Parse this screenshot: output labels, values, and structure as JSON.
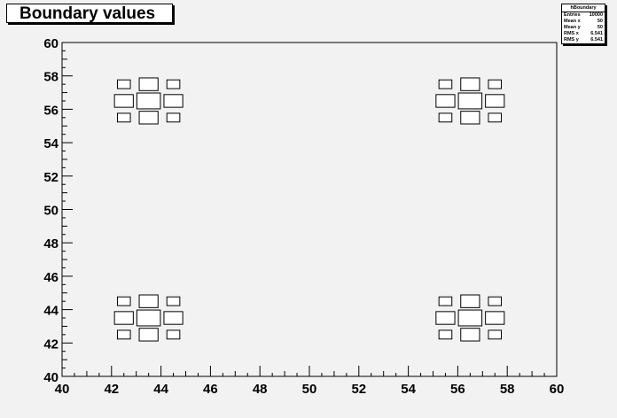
{
  "title": "Boundary values",
  "stats": {
    "name": "hBoundary",
    "rows": [
      {
        "label": "Entries",
        "value": "10000"
      },
      {
        "label": "Mean x",
        "value": "50"
      },
      {
        "label": "Mean y",
        "value": "50"
      },
      {
        "label": "RMS x",
        "value": "6.541"
      },
      {
        "label": "RMS y",
        "value": "6.541"
      }
    ]
  },
  "chart_data": {
    "type": "heatmap",
    "title": "Boundary values",
    "draw_option": "box",
    "xlim": [
      40,
      60
    ],
    "ylim": [
      40,
      60
    ],
    "x_ticks": [
      "40",
      "42",
      "44",
      "46",
      "48",
      "50",
      "52",
      "54",
      "56",
      "58",
      "60"
    ],
    "y_ticks": [
      "40",
      "42",
      "44",
      "46",
      "48",
      "50",
      "52",
      "54",
      "56",
      "58",
      "60"
    ],
    "bin_width": 1,
    "clusters": [
      {
        "center": [
          43.5,
          43.5
        ]
      },
      {
        "center": [
          56.5,
          43.5
        ]
      },
      {
        "center": [
          43.5,
          56.5
        ]
      },
      {
        "center": [
          56.5,
          56.5
        ]
      }
    ],
    "cluster_pattern": [
      {
        "dx": -1,
        "dy": 1,
        "rel": 0.55
      },
      {
        "dx": 0,
        "dy": 1,
        "rel": 0.8
      },
      {
        "dx": 1,
        "dy": 1,
        "rel": 0.55
      },
      {
        "dx": -1,
        "dy": 0,
        "rel": 0.8
      },
      {
        "dx": 0,
        "dy": 0,
        "rel": 1.0
      },
      {
        "dx": 1,
        "dy": 0,
        "rel": 0.8
      },
      {
        "dx": -1,
        "dy": -1,
        "rel": 0.55
      },
      {
        "dx": 0,
        "dy": -1,
        "rel": 0.8
      },
      {
        "dx": 1,
        "dy": -1,
        "rel": 0.55
      }
    ],
    "grid": false,
    "colors": {
      "frame": "#000000",
      "background": "#f2f2f2",
      "box": "#ffffff"
    }
  }
}
